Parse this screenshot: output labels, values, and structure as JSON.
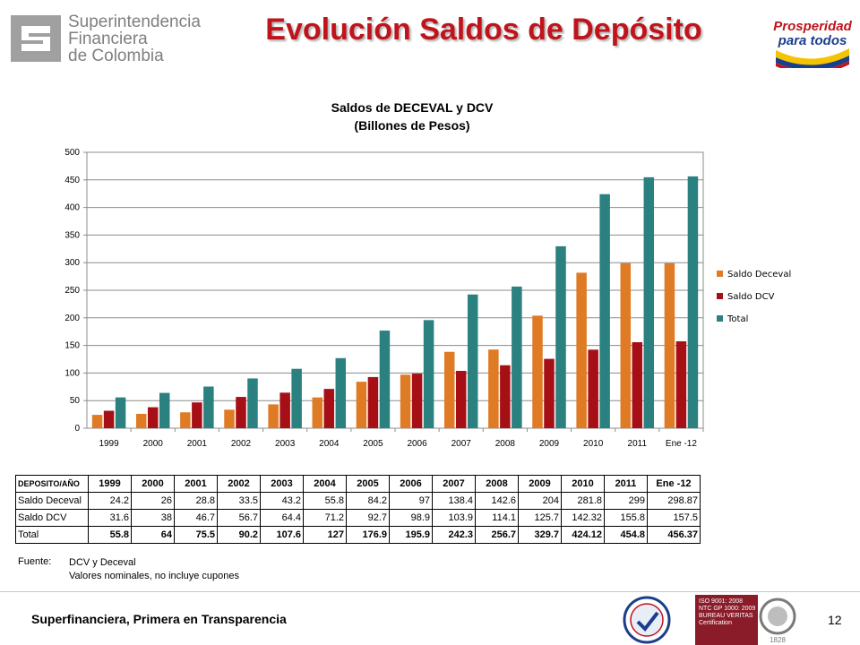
{
  "header": {
    "org_line1": "Superintendencia",
    "org_line2": "Financiera",
    "org_line3": "de Colombia",
    "title": "Evolución Saldos de Depósito",
    "right_logo_line1": "Prosperidad",
    "right_logo_line2": "para todos"
  },
  "chart_data": {
    "type": "bar",
    "title_line1": "Saldos de DECEVAL y DCV",
    "title_line2": "(Billones de Pesos)",
    "categories": [
      "1999",
      "2000",
      "2001",
      "2002",
      "2003",
      "2004",
      "2005",
      "2006",
      "2007",
      "2008",
      "2009",
      "2010",
      "2011",
      "Ene -12"
    ],
    "series": [
      {
        "name": "Saldo Deceval",
        "color": "#e07b25",
        "values": [
          24.2,
          26,
          28.8,
          33.5,
          43.2,
          55.8,
          84.2,
          97,
          138.4,
          142.6,
          204,
          281.8,
          299,
          298.87
        ]
      },
      {
        "name": "Saldo DCV",
        "color": "#a50f15",
        "values": [
          31.6,
          38,
          46.7,
          56.7,
          64.4,
          71.2,
          92.7,
          98.9,
          103.9,
          114.1,
          125.7,
          142.32,
          155.8,
          157.5
        ]
      },
      {
        "name": "Total",
        "color": "#2b8080",
        "values": [
          55.8,
          64,
          75.5,
          90.2,
          107.6,
          127,
          176.9,
          195.9,
          242.3,
          256.7,
          329.7,
          424.12,
          454.8,
          456.37
        ]
      }
    ],
    "ylim": [
      0,
      500
    ],
    "yticks": [
      "0",
      "50",
      "100",
      "150",
      "200",
      "250",
      "300",
      "350",
      "400",
      "450",
      "500"
    ],
    "grid": true,
    "legend": "right"
  },
  "table": {
    "header": [
      "DEPOSITO/AÑO",
      "1999",
      "2000",
      "2001",
      "2002",
      "2003",
      "2004",
      "2005",
      "2006",
      "2007",
      "2008",
      "2009",
      "2010",
      "2011",
      "Ene -12"
    ],
    "rows": [
      [
        "Saldo Deceval",
        "24.2",
        "26",
        "28.8",
        "33.5",
        "43.2",
        "55.8",
        "84.2",
        "97",
        "138.4",
        "142.6",
        "204",
        "281.8",
        "299",
        "298.87"
      ],
      [
        "Saldo DCV",
        "31.6",
        "38",
        "46.7",
        "56.7",
        "64.4",
        "71.2",
        "92.7",
        "98.9",
        "103.9",
        "114.1",
        "125.7",
        "142.32",
        "155.8",
        "157.5"
      ],
      [
        "Total",
        "55.8",
        "64",
        "75.5",
        "90.2",
        "107.6",
        "127",
        "176.9",
        "195.9",
        "242.3",
        "256.7",
        "329.7",
        "424.12",
        "454.8",
        "456.37"
      ]
    ]
  },
  "source": {
    "label": "Fuente:",
    "line1": "DCV y Deceval",
    "line2": "Valores nominales, no incluye cupones"
  },
  "footer": {
    "text": "Superfinanciera, Primera en Transparencia",
    "page": "12",
    "cert_line1": "ISO 9001: 2008",
    "cert_line2": "NTC GP 1000: 2009",
    "cert_line3": "BUREAU VERITAS",
    "cert_line4": "Certification",
    "bv_year": "1828"
  }
}
